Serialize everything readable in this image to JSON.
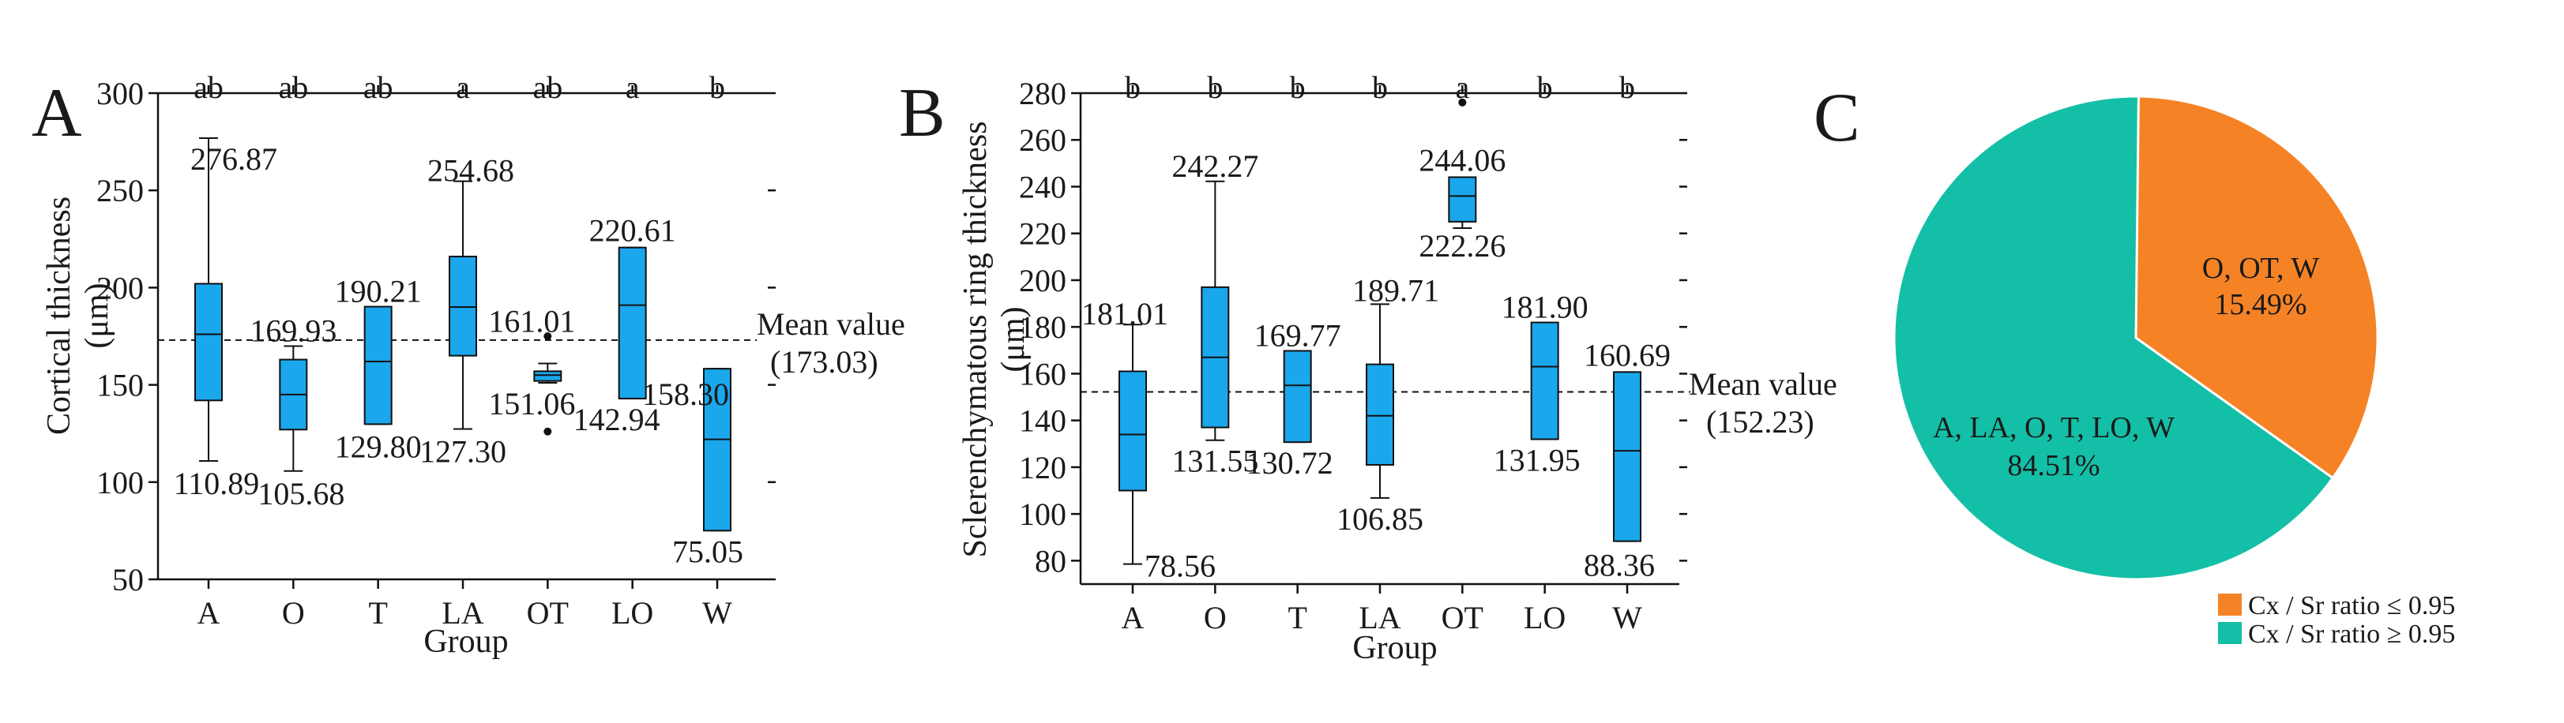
{
  "colors": {
    "box_fill": "#1aa7ec",
    "pie_orange": "#f58326",
    "pie_teal": "#13bfa6",
    "line": "#111111"
  },
  "chart_data": [
    {
      "type": "box",
      "panel_label": "A",
      "xlabel": "Group",
      "ylabel_line1": "Cortical thickness",
      "ylabel_line2": "(μm)",
      "ylim": [
        50,
        300
      ],
      "yticks": [
        50,
        100,
        150,
        200,
        250,
        300
      ],
      "categories": [
        "A",
        "O",
        "T",
        "LA",
        "OT",
        "LO",
        "W"
      ],
      "mean_value": 173.03,
      "mean_label_line1": "Mean value",
      "mean_label_line2": "(173.03)",
      "boxes": [
        {
          "cat": "A",
          "min": 110.89,
          "q1": 142,
          "median": 176,
          "q3": 202,
          "max": 276.87,
          "letter": "ab",
          "max_label": "276.87",
          "min_label": "110.89",
          "outliers": []
        },
        {
          "cat": "O",
          "min": 105.68,
          "q1": 127,
          "median": 145,
          "q3": 163,
          "max": 169.93,
          "letter": "ab",
          "max_label": "169.93",
          "min_label": "105.68",
          "outliers": []
        },
        {
          "cat": "T",
          "min": 129.8,
          "q1": 129.8,
          "median": 162,
          "q3": 190.21,
          "max": 190.21,
          "letter": "ab",
          "max_label": "190.21",
          "min_label": "129.80",
          "outliers": []
        },
        {
          "cat": "LA",
          "min": 127.3,
          "q1": 165,
          "median": 190,
          "q3": 216,
          "max": 254.68,
          "letter": "a",
          "max_label": "254.68",
          "min_label": "127.30",
          "outliers": []
        },
        {
          "cat": "OT",
          "min": 151.06,
          "q1": 152,
          "median": 155,
          "q3": 157,
          "max": 161.01,
          "letter": "ab",
          "max_label": "161.01",
          "min_label": "151.06",
          "outliers": [
            175,
            126
          ]
        },
        {
          "cat": "LO",
          "min": 142.94,
          "q1": 142.94,
          "median": 191,
          "q3": 220.61,
          "max": 220.61,
          "letter": "a",
          "max_label": "220.61",
          "min_label": "142.94",
          "outliers": []
        },
        {
          "cat": "W",
          "min": 75.05,
          "q1": 75.05,
          "median": 122,
          "q3": 158.3,
          "max": 158.3,
          "letter": "b",
          "max_label": "158.30",
          "min_label": "75.05",
          "outliers": []
        }
      ]
    },
    {
      "type": "box",
      "panel_label": "B",
      "xlabel": "Group",
      "ylabel_line1": "Sclerenchymatous ring thickness",
      "ylabel_line2": "(μm)",
      "ylim": [
        70,
        280
      ],
      "yticks": [
        80,
        100,
        120,
        140,
        160,
        180,
        200,
        220,
        240,
        260,
        280
      ],
      "categories": [
        "A",
        "O",
        "T",
        "LA",
        "OT",
        "LO",
        "W"
      ],
      "mean_value": 152.23,
      "mean_label_line1": "Mean value",
      "mean_label_line2": "(152.23)",
      "boxes": [
        {
          "cat": "A",
          "min": 78.56,
          "q1": 110,
          "median": 134,
          "q3": 161,
          "max": 181.01,
          "letter": "b",
          "max_label": "181.01",
          "min_label": "78.56",
          "outliers": []
        },
        {
          "cat": "O",
          "min": 131.55,
          "q1": 137,
          "median": 167,
          "q3": 197,
          "max": 242.27,
          "letter": "b",
          "max_label": "242.27",
          "min_label": "131.55",
          "outliers": []
        },
        {
          "cat": "T",
          "min": 130.72,
          "q1": 130.72,
          "median": 155,
          "q3": 169.77,
          "max": 169.77,
          "letter": "b",
          "max_label": "169.77",
          "min_label": "130.72",
          "outliers": []
        },
        {
          "cat": "LA",
          "min": 106.85,
          "q1": 121,
          "median": 142,
          "q3": 164,
          "max": 189.71,
          "letter": "b",
          "max_label": "189.71",
          "min_label": "106.85",
          "outliers": []
        },
        {
          "cat": "OT",
          "min": 222.26,
          "q1": 225,
          "median": 236,
          "q3": 244.06,
          "max": 244.06,
          "letter": "a",
          "max_label": "244.06",
          "min_label": "222.26",
          "outliers": [
            276
          ]
        },
        {
          "cat": "LO",
          "min": 131.95,
          "q1": 131.95,
          "median": 163,
          "q3": 181.9,
          "max": 181.9,
          "letter": "b",
          "max_label": "181.90",
          "min_label": "131.95",
          "outliers": []
        },
        {
          "cat": "W",
          "min": 88.36,
          "q1": 88.36,
          "median": 127,
          "q3": 160.69,
          "max": 160.69,
          "letter": "b",
          "max_label": "160.69",
          "min_label": "88.36",
          "outliers": []
        }
      ]
    },
    {
      "type": "pie",
      "panel_label": "C",
      "slices": [
        {
          "name": "O, OT, W",
          "value": 15.49,
          "pct_label": "15.49%",
          "color": "#f58326"
        },
        {
          "name": "A, LA, O, T, LO, W",
          "value": 84.51,
          "pct_label": "84.51%",
          "color": "#13bfa6"
        }
      ],
      "legend": [
        {
          "label": "Cx / Sr ratio ≤ 0.95",
          "color": "#f58326"
        },
        {
          "label": "Cx / Sr ratio ≥ 0.95",
          "color": "#13bfa6"
        }
      ]
    }
  ]
}
